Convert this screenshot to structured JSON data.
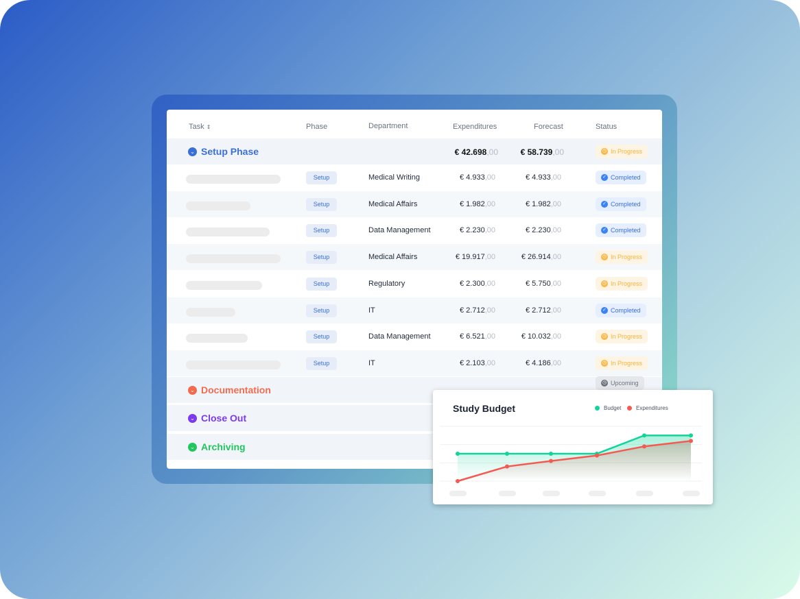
{
  "table": {
    "headers": {
      "task": "Task",
      "sort_icon": "⇕",
      "phase": "Phase",
      "department": "Department",
      "expenditures": "Expenditures",
      "forecast": "Forecast",
      "status": "Status"
    },
    "setup_group": {
      "title": "Setup Phase",
      "color": "#3b6fd8",
      "expenditures": "€ 42.698",
      "expenditures_dec": ",00",
      "forecast": "€ 58.739",
      "forecast_dec": ",00",
      "status": "In Progress"
    },
    "rows": [
      {
        "phase": "Setup",
        "department": "Medical Writing",
        "exp": "€ 4.933",
        "exp_dec": ",00",
        "fc": "€ 4.933",
        "fc_dec": ",00",
        "status": "Completed"
      },
      {
        "phase": "Setup",
        "department": "Medical Affairs",
        "exp": "€ 1.982",
        "exp_dec": ",00",
        "fc": "€ 1.982",
        "fc_dec": ",00",
        "status": "Completed"
      },
      {
        "phase": "Setup",
        "department": "Data Management",
        "exp": "€ 2.230",
        "exp_dec": ",00",
        "fc": "€ 2.230",
        "fc_dec": ",00",
        "status": "Completed"
      },
      {
        "phase": "Setup",
        "department": "Medical Affairs",
        "exp": "€ 19.917",
        "exp_dec": ",00",
        "fc": "€ 26.914",
        "fc_dec": ",00",
        "status": "In Progress"
      },
      {
        "phase": "Setup",
        "department": "Regulatory",
        "exp": "€ 2.300",
        "exp_dec": ",00",
        "fc": "€ 5.750",
        "fc_dec": ",00",
        "status": "In Progress"
      },
      {
        "phase": "Setup",
        "department": "IT",
        "exp": "€ 2.712",
        "exp_dec": ",00",
        "fc": "€ 2.712",
        "fc_dec": ",00",
        "status": "Completed"
      },
      {
        "phase": "Setup",
        "department": "Data Management",
        "exp": "€ 6.521",
        "exp_dec": ",00",
        "fc": "€ 10.032",
        "fc_dec": ",00",
        "status": "In Progress"
      },
      {
        "phase": "Setup",
        "department": "IT",
        "exp": "€ 2.103",
        "exp_dec": ",00",
        "fc": "€ 4.186",
        "fc_dec": ",00",
        "status": "In Progress"
      }
    ],
    "groups": [
      {
        "title": "Documentation",
        "color": "#f26b4f",
        "status": "Upcoming"
      },
      {
        "title": "Close Out",
        "color": "#7c3aed"
      },
      {
        "title": "Archiving",
        "color": "#22c55e"
      }
    ]
  },
  "chart_data": {
    "type": "area",
    "title": "Study Budget",
    "series": [
      {
        "name": "Budget",
        "color": "#10d49a",
        "values": [
          1.5,
          1.5,
          1.5,
          1.5,
          2.5,
          2.5
        ]
      },
      {
        "name": "Expenditures",
        "color": "#f25a52",
        "values": [
          0,
          0.8,
          1.1,
          1.4,
          1.9,
          2.2
        ]
      }
    ],
    "ylim": [
      0,
      3
    ],
    "grid": true,
    "legend": "top-right"
  }
}
